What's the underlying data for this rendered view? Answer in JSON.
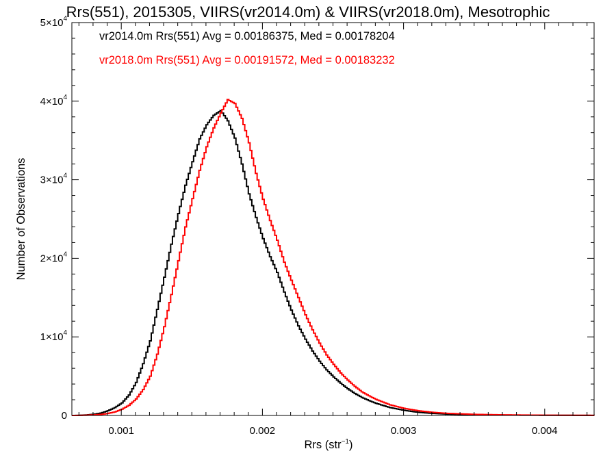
{
  "chart_data": {
    "type": "line",
    "title": "Rrs(551), 2015305, VIIRS(vr2014.0m) & VIIRS(vr2018.0m), Mesotrophic",
    "xlabel_main": "Rrs (str",
    "xlabel_sup": "−1",
    "xlabel_end": ")",
    "ylabel": "Number of Observations",
    "xlim": [
      0.00065,
      0.00435
    ],
    "ylim": [
      0,
      50000
    ],
    "x_ticks": [
      {
        "value": 0.001,
        "label": "0.001"
      },
      {
        "value": 0.002,
        "label": "0.002"
      },
      {
        "value": 0.003,
        "label": "0.003"
      },
      {
        "value": 0.004,
        "label": "0.004"
      }
    ],
    "y_ticks": [
      {
        "value": 0,
        "base": "0",
        "exp": ""
      },
      {
        "value": 10000,
        "base": "1×10",
        "exp": "4"
      },
      {
        "value": 20000,
        "base": "2×10",
        "exp": "4"
      },
      {
        "value": 30000,
        "base": "3×10",
        "exp": "4"
      },
      {
        "value": 40000,
        "base": "4×10",
        "exp": "4"
      },
      {
        "value": 50000,
        "base": "5×10",
        "exp": "4"
      }
    ],
    "grid": false,
    "legend_position": "top-left",
    "series": [
      {
        "name": "vr2014.0m Rrs(551) Avg = 0.00186375, Med = 0.00178204",
        "color": "#000000",
        "points": [
          [
            0.00065,
            0
          ],
          [
            0.0007,
            20
          ],
          [
            0.00075,
            60
          ],
          [
            0.0008,
            150
          ],
          [
            0.00085,
            300
          ],
          [
            0.0009,
            600
          ],
          [
            0.00095,
            1000
          ],
          [
            0.001,
            1600
          ],
          [
            0.00105,
            2600
          ],
          [
            0.0011,
            4200
          ],
          [
            0.00115,
            6600
          ],
          [
            0.0012,
            9500
          ],
          [
            0.00125,
            13500
          ],
          [
            0.0013,
            17600
          ],
          [
            0.00135,
            21800
          ],
          [
            0.0014,
            25700
          ],
          [
            0.00145,
            29300
          ],
          [
            0.0015,
            32300
          ],
          [
            0.00155,
            35200
          ],
          [
            0.0016,
            37000
          ],
          [
            0.00165,
            38200
          ],
          [
            0.0017,
            38800
          ],
          [
            0.00175,
            37500
          ],
          [
            0.0018,
            35300
          ],
          [
            0.00185,
            32000
          ],
          [
            0.0019,
            28200
          ],
          [
            0.00195,
            25200
          ],
          [
            0.002,
            22500
          ],
          [
            0.00205,
            20200
          ],
          [
            0.0021,
            18200
          ],
          [
            0.00215,
            15700
          ],
          [
            0.0022,
            13400
          ],
          [
            0.00225,
            11400
          ],
          [
            0.0023,
            9700
          ],
          [
            0.00235,
            8200
          ],
          [
            0.0024,
            6900
          ],
          [
            0.00245,
            5800
          ],
          [
            0.0025,
            4900
          ],
          [
            0.00255,
            4100
          ],
          [
            0.0026,
            3400
          ],
          [
            0.00265,
            2800
          ],
          [
            0.0027,
            2300
          ],
          [
            0.00275,
            1900
          ],
          [
            0.0028,
            1550
          ],
          [
            0.0029,
            1000
          ],
          [
            0.003,
            650
          ],
          [
            0.0031,
            400
          ],
          [
            0.0032,
            260
          ],
          [
            0.0033,
            170
          ],
          [
            0.0035,
            90
          ],
          [
            0.0037,
            50
          ],
          [
            0.0039,
            30
          ],
          [
            0.0041,
            20
          ],
          [
            0.00435,
            10
          ]
        ]
      },
      {
        "name": "vr2018.0m Rrs(551) Avg = 0.00191572, Med = 0.00183232",
        "color": "#ff0000",
        "points": [
          [
            0.00065,
            0
          ],
          [
            0.0007,
            10
          ],
          [
            0.00075,
            30
          ],
          [
            0.0008,
            70
          ],
          [
            0.00085,
            130
          ],
          [
            0.0009,
            250
          ],
          [
            0.00095,
            450
          ],
          [
            0.001,
            800
          ],
          [
            0.00105,
            1300
          ],
          [
            0.0011,
            2100
          ],
          [
            0.00115,
            3300
          ],
          [
            0.0012,
            5000
          ],
          [
            0.00125,
            7800
          ],
          [
            0.0013,
            11300
          ],
          [
            0.00135,
            15400
          ],
          [
            0.0014,
            19700
          ],
          [
            0.00145,
            24000
          ],
          [
            0.0015,
            27600
          ],
          [
            0.00155,
            31200
          ],
          [
            0.0016,
            34200
          ],
          [
            0.00165,
            36600
          ],
          [
            0.0017,
            38500
          ],
          [
            0.00175,
            40200
          ],
          [
            0.0018,
            39700
          ],
          [
            0.00185,
            37800
          ],
          [
            0.0019,
            34700
          ],
          [
            0.00195,
            30800
          ],
          [
            0.002,
            27500
          ],
          [
            0.00205,
            24800
          ],
          [
            0.0021,
            22300
          ],
          [
            0.00215,
            19500
          ],
          [
            0.0022,
            17200
          ],
          [
            0.00225,
            15000
          ],
          [
            0.0023,
            12800
          ],
          [
            0.00235,
            10900
          ],
          [
            0.0024,
            9200
          ],
          [
            0.00245,
            7700
          ],
          [
            0.0025,
            6500
          ],
          [
            0.00255,
            5400
          ],
          [
            0.0026,
            4500
          ],
          [
            0.00265,
            3700
          ],
          [
            0.0027,
            3000
          ],
          [
            0.00275,
            2500
          ],
          [
            0.0028,
            2050
          ],
          [
            0.0029,
            1350
          ],
          [
            0.003,
            900
          ],
          [
            0.0031,
            600
          ],
          [
            0.0032,
            400
          ],
          [
            0.0033,
            270
          ],
          [
            0.0035,
            140
          ],
          [
            0.0037,
            80
          ],
          [
            0.0039,
            45
          ],
          [
            0.0041,
            25
          ],
          [
            0.00435,
            15
          ]
        ]
      }
    ]
  }
}
